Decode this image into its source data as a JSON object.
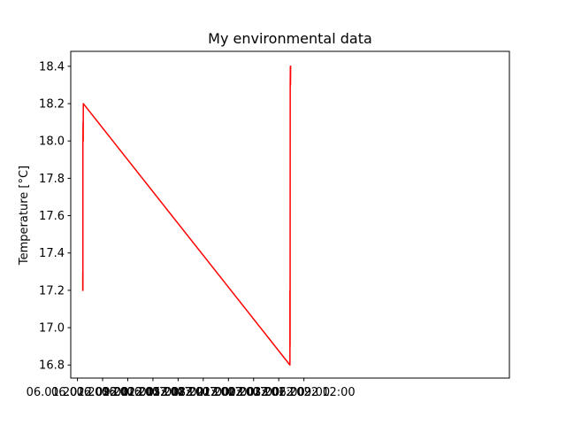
{
  "chart_data": {
    "type": "line",
    "title": "My environmental data",
    "xlabel": "",
    "ylabel": "Temperature [°C]",
    "xlim": [
      "2022-01-06 08:12",
      "2022-01-08 12:30"
    ],
    "ylim": [
      16.73,
      18.48
    ],
    "x_ticks": [
      {
        "label": "06.01.2022 09:00",
        "x": "2022-01-06 09:00"
      },
      {
        "label": "06.01.2022 12:00",
        "x": "2022-01-06 12:00"
      },
      {
        "label": "06.01.2022 15:00",
        "x": "2022-01-06 15:00"
      },
      {
        "label": "06.01.2022 18:00",
        "x": "2022-01-06 18:00"
      },
      {
        "label": "06.01.2022 21:00",
        "x": "2022-01-06 21:00"
      },
      {
        "label": "07.01.2022 00:00",
        "x": "2022-01-07 00:00"
      },
      {
        "label": "07.01.2022 03:00",
        "x": "2022-01-07 03:00"
      },
      {
        "label": "07.01.2022 06:00",
        "x": "2022-01-07 06:00"
      },
      {
        "label": "07.01.2022 09:00",
        "x": "2022-01-07 09:00"
      },
      {
        "label": "07.01.2022 12:00",
        "x": "2022-01-07 12:00"
      }
    ],
    "y_ticks": [
      "16.8",
      "17.0",
      "17.2",
      "17.4",
      "17.6",
      "17.8",
      "18.0",
      "18.2",
      "18.4"
    ],
    "grid": false,
    "series": [
      {
        "color": "#ff0000",
        "points": [
          {
            "x": "2022-01-06 09:38",
            "y": 17.2
          },
          {
            "x": "2022-01-06 09:38",
            "y": 17.3
          },
          {
            "x": "2022-01-06 09:39",
            "y": 17.2
          },
          {
            "x": "2022-01-06 09:39",
            "y": 18.0
          },
          {
            "x": "2022-01-06 09:40",
            "y": 18.1
          },
          {
            "x": "2022-01-06 09:41",
            "y": 18.0
          },
          {
            "x": "2022-01-06 09:42",
            "y": 18.2
          },
          {
            "x": "2022-01-07 10:20",
            "y": 16.8
          },
          {
            "x": "2022-01-07 10:20",
            "y": 17.2
          },
          {
            "x": "2022-01-07 10:21",
            "y": 16.9
          },
          {
            "x": "2022-01-07 10:22",
            "y": 18.3
          },
          {
            "x": "2022-01-07 10:23",
            "y": 18.4
          },
          {
            "x": "2022-01-07 10:24",
            "y": 18.3
          },
          {
            "x": "2022-01-07 10:25",
            "y": 18.4
          }
        ]
      }
    ]
  },
  "colors": {
    "series": "#ff0000",
    "axes": "#000000",
    "background": "#ffffff"
  }
}
